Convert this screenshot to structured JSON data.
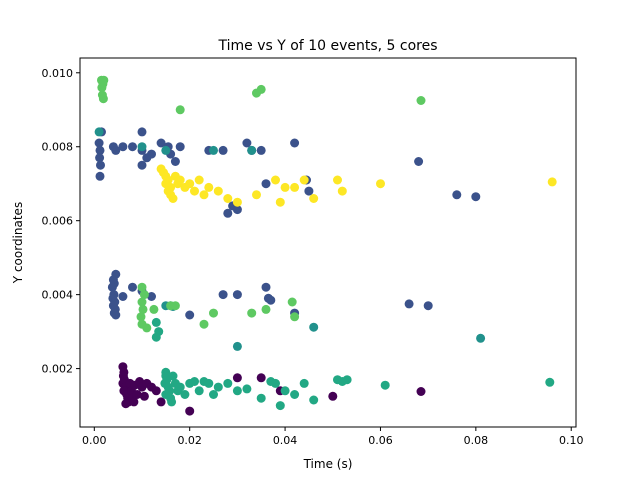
{
  "chart_data": {
    "type": "scatter",
    "title": "Time vs Y of 10 events, 5 cores",
    "xlabel": "Time (s)",
    "ylabel": "Y coordinates",
    "xlim": [
      -0.003,
      0.101
    ],
    "ylim": [
      0.00042,
      0.0104
    ],
    "xticks": [
      0.0,
      0.02,
      0.04,
      0.06,
      0.08,
      0.1
    ],
    "xtick_labels": [
      "0.00",
      "0.02",
      "0.04",
      "0.06",
      "0.08",
      "0.10"
    ],
    "yticks": [
      0.002,
      0.004,
      0.006,
      0.008,
      0.01
    ],
    "ytick_labels": [
      "0.002",
      "0.004",
      "0.006",
      "0.008",
      "0.010"
    ],
    "grid": false,
    "legend": "none",
    "series": [
      {
        "color": "#440154",
        "points": [
          [
            0.006,
            0.00205
          ],
          [
            0.0062,
            0.0019
          ],
          [
            0.0061,
            0.0018
          ],
          [
            0.0063,
            0.0017
          ],
          [
            0.006,
            0.0016
          ],
          [
            0.0065,
            0.0015
          ],
          [
            0.0062,
            0.0014
          ],
          [
            0.0068,
            0.0013
          ],
          [
            0.007,
            0.0012
          ],
          [
            0.0066,
            0.00105
          ],
          [
            0.0072,
            0.0011
          ],
          [
            0.0075,
            0.0016
          ],
          [
            0.0078,
            0.0014
          ],
          [
            0.008,
            0.0012
          ],
          [
            0.0083,
            0.0011
          ],
          [
            0.0085,
            0.00155
          ],
          [
            0.009,
            0.0013
          ],
          [
            0.0095,
            0.00165
          ],
          [
            0.01,
            0.0015
          ],
          [
            0.0105,
            0.00125
          ],
          [
            0.011,
            0.0016
          ],
          [
            0.012,
            0.0015
          ],
          [
            0.013,
            0.0014
          ],
          [
            0.014,
            0.0011
          ],
          [
            0.02,
            0.00085
          ],
          [
            0.03,
            0.00175
          ],
          [
            0.035,
            0.00175
          ],
          [
            0.039,
            0.0014
          ],
          [
            0.05,
            0.00125
          ],
          [
            0.0685,
            0.00138
          ]
        ]
      },
      {
        "color": "#3b528b",
        "points": [
          [
            0.001,
            0.0081
          ],
          [
            0.0012,
            0.0079
          ],
          [
            0.0011,
            0.0077
          ],
          [
            0.0013,
            0.0075
          ],
          [
            0.0015,
            0.0084
          ],
          [
            0.0012,
            0.0072
          ],
          [
            0.004,
            0.008
          ],
          [
            0.0045,
            0.0079
          ],
          [
            0.006,
            0.008
          ],
          [
            0.008,
            0.008
          ],
          [
            0.01,
            0.0084
          ],
          [
            0.011,
            0.0077
          ],
          [
            0.012,
            0.0078
          ],
          [
            0.01,
            0.0079
          ],
          [
            0.01,
            0.0075
          ],
          [
            0.014,
            0.0081
          ],
          [
            0.0155,
            0.008
          ],
          [
            0.016,
            0.0078
          ],
          [
            0.017,
            0.0076
          ],
          [
            0.018,
            0.008
          ],
          [
            0.024,
            0.0079
          ],
          [
            0.027,
            0.0079
          ],
          [
            0.028,
            0.0062
          ],
          [
            0.029,
            0.0064
          ],
          [
            0.03,
            0.0063
          ],
          [
            0.032,
            0.0081
          ],
          [
            0.033,
            0.0079
          ],
          [
            0.035,
            0.0079
          ],
          [
            0.036,
            0.007
          ],
          [
            0.042,
            0.0081
          ],
          [
            0.0445,
            0.0071
          ],
          [
            0.045,
            0.0068
          ],
          [
            0.068,
            0.0076
          ],
          [
            0.076,
            0.0067
          ],
          [
            0.08,
            0.00665
          ],
          [
            0.0045,
            0.00455
          ],
          [
            0.004,
            0.0044
          ],
          [
            0.0042,
            0.0043
          ],
          [
            0.0038,
            0.0042
          ],
          [
            0.0041,
            0.004
          ],
          [
            0.0039,
            0.0039
          ],
          [
            0.0043,
            0.0038
          ],
          [
            0.004,
            0.0037
          ],
          [
            0.0044,
            0.0036
          ],
          [
            0.0042,
            0.0035
          ],
          [
            0.0045,
            0.00345
          ],
          [
            0.006,
            0.00395
          ],
          [
            0.008,
            0.0042
          ],
          [
            0.01,
            0.0041
          ],
          [
            0.012,
            0.00395
          ],
          [
            0.02,
            0.00345
          ],
          [
            0.027,
            0.004
          ],
          [
            0.03,
            0.004
          ],
          [
            0.036,
            0.0042
          ],
          [
            0.0365,
            0.0039
          ],
          [
            0.037,
            0.00385
          ],
          [
            0.042,
            0.0035
          ],
          [
            0.066,
            0.00375
          ],
          [
            0.07,
            0.0037
          ]
        ]
      },
      {
        "color": "#21918c",
        "points": [
          [
            0.001,
            0.0084
          ],
          [
            0.01,
            0.008
          ],
          [
            0.015,
            0.0079
          ],
          [
            0.025,
            0.0079
          ],
          [
            0.033,
            0.0079
          ],
          [
            0.015,
            0.0037
          ],
          [
            0.016,
            0.0037
          ],
          [
            0.0165,
            0.00368
          ],
          [
            0.046,
            0.00312
          ],
          [
            0.081,
            0.00282
          ],
          [
            0.03,
            0.0026
          ]
        ]
      },
      {
        "color": "#22a884",
        "points": [
          [
            0.013,
            0.00325
          ],
          [
            0.0135,
            0.003
          ],
          [
            0.013,
            0.00285
          ],
          [
            0.015,
            0.0019
          ],
          [
            0.015,
            0.0018
          ],
          [
            0.0152,
            0.0017
          ],
          [
            0.0148,
            0.0016
          ],
          [
            0.0155,
            0.0015
          ],
          [
            0.0158,
            0.0014
          ],
          [
            0.015,
            0.0013
          ],
          [
            0.016,
            0.0012
          ],
          [
            0.0162,
            0.0011
          ],
          [
            0.0165,
            0.0018
          ],
          [
            0.017,
            0.0016
          ],
          [
            0.0175,
            0.0014
          ],
          [
            0.018,
            0.0015
          ],
          [
            0.019,
            0.0013
          ],
          [
            0.02,
            0.0016
          ],
          [
            0.021,
            0.00165
          ],
          [
            0.022,
            0.0014
          ],
          [
            0.023,
            0.00165
          ],
          [
            0.024,
            0.0016
          ],
          [
            0.025,
            0.0013
          ],
          [
            0.026,
            0.0015
          ],
          [
            0.028,
            0.0016
          ],
          [
            0.03,
            0.0014
          ],
          [
            0.032,
            0.00145
          ],
          [
            0.035,
            0.0012
          ],
          [
            0.037,
            0.00165
          ],
          [
            0.038,
            0.0016
          ],
          [
            0.039,
            0.001
          ],
          [
            0.04,
            0.0014
          ],
          [
            0.042,
            0.0013
          ],
          [
            0.044,
            0.0016
          ],
          [
            0.046,
            0.00115
          ],
          [
            0.051,
            0.0017
          ],
          [
            0.052,
            0.00165
          ],
          [
            0.053,
            0.0017
          ],
          [
            0.061,
            0.00155
          ],
          [
            0.0955,
            0.00163
          ]
        ]
      },
      {
        "color": "#5ec962",
        "points": [
          [
            0.0015,
            0.0098
          ],
          [
            0.0018,
            0.0097
          ],
          [
            0.0016,
            0.0096
          ],
          [
            0.002,
            0.0098
          ],
          [
            0.0017,
            0.0094
          ],
          [
            0.0019,
            0.0093
          ],
          [
            0.018,
            0.009
          ],
          [
            0.034,
            0.00945
          ],
          [
            0.035,
            0.00955
          ],
          [
            0.0685,
            0.00925
          ],
          [
            0.01,
            0.0042
          ],
          [
            0.0105,
            0.004
          ],
          [
            0.01,
            0.0038
          ],
          [
            0.0102,
            0.0036
          ],
          [
            0.0098,
            0.0034
          ],
          [
            0.01,
            0.0032
          ],
          [
            0.011,
            0.0031
          ],
          [
            0.0125,
            0.0036
          ],
          [
            0.016,
            0.0037
          ],
          [
            0.017,
            0.0037
          ],
          [
            0.023,
            0.0032
          ],
          [
            0.025,
            0.0035
          ],
          [
            0.033,
            0.0035
          ],
          [
            0.036,
            0.0036
          ],
          [
            0.0415,
            0.0038
          ],
          [
            0.042,
            0.0034
          ]
        ]
      },
      {
        "color": "#fde725",
        "points": [
          [
            0.014,
            0.0074
          ],
          [
            0.0145,
            0.0073
          ],
          [
            0.015,
            0.0072
          ],
          [
            0.0155,
            0.0071
          ],
          [
            0.015,
            0.007
          ],
          [
            0.016,
            0.0069
          ],
          [
            0.0155,
            0.0068
          ],
          [
            0.016,
            0.0067
          ],
          [
            0.0165,
            0.0066
          ],
          [
            0.017,
            0.0072
          ],
          [
            0.0175,
            0.007
          ],
          [
            0.018,
            0.0071
          ],
          [
            0.019,
            0.0069
          ],
          [
            0.02,
            0.007
          ],
          [
            0.021,
            0.0068
          ],
          [
            0.022,
            0.0071
          ],
          [
            0.023,
            0.0067
          ],
          [
            0.024,
            0.0069
          ],
          [
            0.026,
            0.0068
          ],
          [
            0.028,
            0.0066
          ],
          [
            0.03,
            0.0065
          ],
          [
            0.034,
            0.0067
          ],
          [
            0.038,
            0.0071
          ],
          [
            0.039,
            0.0065
          ],
          [
            0.04,
            0.0069
          ],
          [
            0.042,
            0.0069
          ],
          [
            0.044,
            0.0071
          ],
          [
            0.046,
            0.0066
          ],
          [
            0.051,
            0.0071
          ],
          [
            0.052,
            0.0068
          ],
          [
            0.06,
            0.007
          ],
          [
            0.096,
            0.00705
          ]
        ]
      }
    ]
  }
}
